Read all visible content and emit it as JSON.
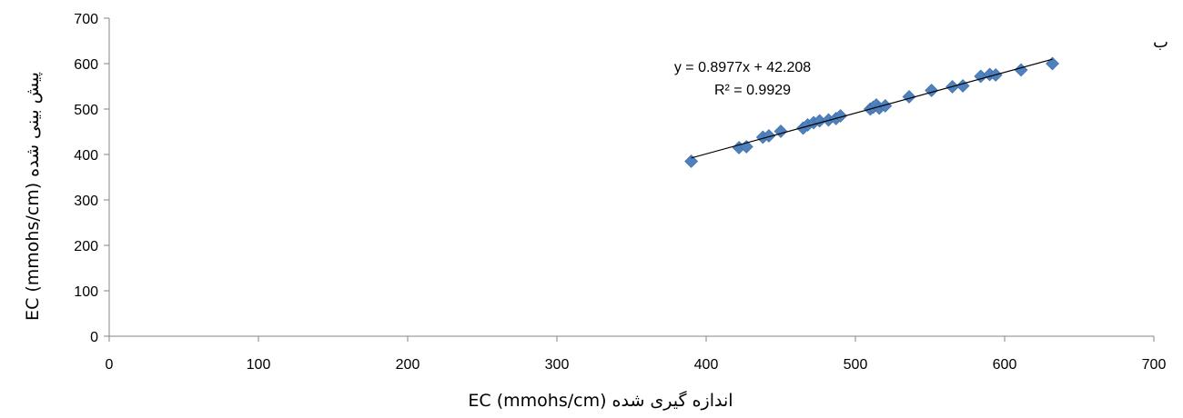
{
  "chart_data": {
    "type": "scatter",
    "panel_label": "ب",
    "xlabel": "EC (mmohs/cm) اندازه گیری شده",
    "ylabel": "EC (mmohs/cm) پیش بینی شده",
    "xlim": [
      0,
      700
    ],
    "ylim": [
      0,
      700
    ],
    "xticks": [
      "0",
      "100",
      "200",
      "300",
      "400",
      "500",
      "600",
      "700"
    ],
    "yticks": [
      "0",
      "100",
      "200",
      "300",
      "400",
      "500",
      "600",
      "700"
    ],
    "grid": false,
    "marker_color": "#4F81BD",
    "trendline": {
      "equation": "y = 0.8977x + 42.208",
      "r_squared": "R² = 0.9929",
      "slope": 0.8977,
      "intercept": 42.208,
      "x_range": [
        390,
        632
      ]
    },
    "points": [
      [
        390,
        385
      ],
      [
        422,
        415
      ],
      [
        427,
        417
      ],
      [
        438,
        438
      ],
      [
        442,
        441
      ],
      [
        450,
        451
      ],
      [
        465,
        458
      ],
      [
        468,
        465
      ],
      [
        472,
        470
      ],
      [
        476,
        474
      ],
      [
        482,
        476
      ],
      [
        487,
        479
      ],
      [
        490,
        485
      ],
      [
        510,
        500
      ],
      [
        512,
        504
      ],
      [
        514,
        509
      ],
      [
        516,
        502
      ],
      [
        520,
        507
      ],
      [
        536,
        527
      ],
      [
        551,
        541
      ],
      [
        565,
        549
      ],
      [
        572,
        551
      ],
      [
        584,
        572
      ],
      [
        590,
        576
      ],
      [
        594,
        575
      ],
      [
        611,
        586
      ],
      [
        632,
        600
      ]
    ]
  }
}
